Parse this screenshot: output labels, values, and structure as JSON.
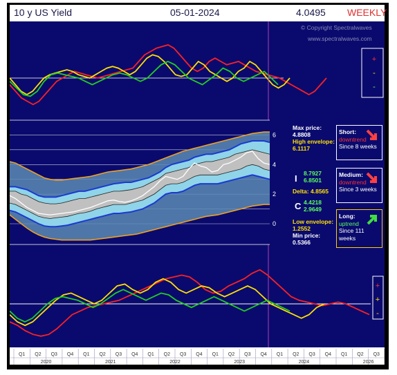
{
  "header": {
    "title": "10 y US Yield",
    "date": "05-01-2024",
    "value": "4.0495",
    "period": "WEEKLY"
  },
  "copyright": {
    "line1": "© Copyright Spectralwaves",
    "line2": "www.spectralwaves.com"
  },
  "side_symbols": {
    "top": [
      "+",
      "-",
      "-"
    ],
    "bottom": [
      "+",
      "+",
      "-"
    ]
  },
  "info": {
    "max_label": "Max price:",
    "max_value": "4.8808",
    "high_env_label": "High envelope:",
    "high_env_value": "6.1117",
    "i_label": "I",
    "i_value1": "8.7927",
    "i_value2": "6.8501",
    "delta_label": "Delta:",
    "delta_value": "4.8565",
    "c_label": "C",
    "c_value1": "4.4218",
    "c_value2": "2.9649",
    "low_env_label": "Low envelope:",
    "low_env_value": "1.2552",
    "min_label": "Min price:",
    "min_value": "0.5366"
  },
  "signals": [
    {
      "term": "Short:",
      "trend": "downtrend",
      "since": "Since 8 weeks",
      "color": "#ff3030"
    },
    {
      "term": "Medium:",
      "trend": "downtrend",
      "since": "Since 3 weeks",
      "color": "#ff3030"
    },
    {
      "term": "Long:",
      "trend": "uptrend",
      "since": "Since 111 weeks",
      "color": "#33dd33"
    }
  ],
  "chart_data": {
    "type": "line",
    "title": "10 y US Yield",
    "y_ticks": [
      "6",
      "4",
      "2",
      "0"
    ],
    "ylim": [
      -1.4,
      7
    ],
    "x_quarters": [
      "Q1",
      "Q2",
      "Q3",
      "Q4",
      "Q1",
      "Q2",
      "Q3",
      "Q4",
      "Q1",
      "Q2",
      "Q3",
      "Q4",
      "Q1",
      "Q2",
      "Q3",
      "Q4",
      "Q1",
      "Q2",
      "Q3",
      "Q4",
      "Q1",
      "Q2",
      "Q3",
      "Q4"
    ],
    "x_years": [
      "2020",
      "2021",
      "2022",
      "2023",
      "2024",
      "2026"
    ],
    "price": [
      1.9,
      1.7,
      1.4,
      1.1,
      0.9,
      0.7,
      0.65,
      0.6,
      0.65,
      0.7,
      0.75,
      0.8,
      0.9,
      1.0,
      1.1,
      1.25,
      1.4,
      1.55,
      1.6,
      1.5,
      1.45,
      1.55,
      1.7,
      1.9,
      2.2,
      2.5,
      2.9,
      3.2,
      3.1,
      3.0,
      3.2,
      3.7,
      4.1,
      3.9,
      3.8,
      3.5,
      3.6,
      4.0,
      4.1,
      4.3,
      4.5,
      4.8,
      4.9,
      4.4,
      4.1,
      4.0
    ],
    "band_outer_upper": [
      2.5,
      2.5,
      2.4,
      2.3,
      2.1,
      1.9,
      1.8,
      1.8,
      1.8,
      1.9,
      2.0,
      2.1,
      2.2,
      2.2,
      2.3,
      2.4,
      2.5,
      2.6,
      2.7,
      2.75,
      2.8,
      2.8,
      2.9,
      3.0,
      3.1,
      3.3,
      3.5,
      3.8,
      4.0,
      4.1,
      4.2,
      4.3,
      4.5,
      4.6,
      4.7,
      4.7,
      4.8,
      4.9,
      5.0,
      5.2,
      5.4,
      5.5,
      5.6,
      5.6,
      5.6,
      5.5
    ],
    "band_inner_upper": [
      2.2,
      2.2,
      2.0,
      1.9,
      1.7,
      1.5,
      1.4,
      1.35,
      1.35,
      1.4,
      1.5,
      1.6,
      1.7,
      1.7,
      1.8,
      1.9,
      2.0,
      2.1,
      2.2,
      2.2,
      2.25,
      2.3,
      2.4,
      2.5,
      2.7,
      2.9,
      3.1,
      3.4,
      3.5,
      3.6,
      3.7,
      3.8,
      4.0,
      4.1,
      4.2,
      4.2,
      4.3,
      4.4,
      4.5,
      4.7,
      4.8,
      4.9,
      5.0,
      4.9,
      4.8,
      4.7
    ],
    "band_inner_lower": [
      1.4,
      1.3,
      1.1,
      0.9,
      0.7,
      0.5,
      0.4,
      0.35,
      0.4,
      0.45,
      0.5,
      0.6,
      0.7,
      0.75,
      0.85,
      1.0,
      1.1,
      1.2,
      1.3,
      1.3,
      1.3,
      1.4,
      1.5,
      1.6,
      1.8,
      2.0,
      2.3,
      2.6,
      2.7,
      2.7,
      2.8,
      3.0,
      3.2,
      3.3,
      3.3,
      3.3,
      3.3,
      3.4,
      3.5,
      3.6,
      3.7,
      3.9,
      4.0,
      3.9,
      3.7,
      3.6
    ],
    "band_outer_lower": [
      0.9,
      0.8,
      0.6,
      0.4,
      0.2,
      0.0,
      -0.15,
      -0.2,
      -0.2,
      -0.15,
      -0.1,
      0.0,
      0.1,
      0.2,
      0.3,
      0.4,
      0.5,
      0.6,
      0.7,
      0.7,
      0.75,
      0.8,
      0.9,
      1.0,
      1.2,
      1.4,
      1.7,
      2.0,
      2.1,
      2.1,
      2.2,
      2.4,
      2.6,
      2.7,
      2.7,
      2.7,
      2.7,
      2.8,
      2.9,
      3.0,
      3.1,
      3.2,
      3.3,
      3.2,
      3.1,
      3.0
    ],
    "envelope_upper": [
      4.2,
      4.1,
      3.9,
      3.7,
      3.5,
      3.3,
      3.1,
      3.0,
      2.95,
      2.95,
      3.0,
      3.05,
      3.1,
      3.15,
      3.2,
      3.3,
      3.4,
      3.5,
      3.55,
      3.6,
      3.65,
      3.7,
      3.8,
      3.9,
      4.0,
      4.15,
      4.3,
      4.45,
      4.6,
      4.75,
      4.9,
      5.0,
      5.1,
      5.2,
      5.3,
      5.4,
      5.5,
      5.6,
      5.7,
      5.8,
      5.9,
      6.0,
      6.1,
      6.15,
      6.2,
      6.2
    ],
    "envelope_lower": [
      0.6,
      0.3,
      0.0,
      -0.3,
      -0.55,
      -0.75,
      -0.9,
      -1.0,
      -1.05,
      -1.1,
      -1.1,
      -1.1,
      -1.1,
      -1.1,
      -1.1,
      -1.05,
      -1.0,
      -0.95,
      -0.9,
      -0.85,
      -0.8,
      -0.75,
      -0.7,
      -0.6,
      -0.5,
      -0.4,
      -0.3,
      -0.2,
      -0.1,
      0.0,
      0.1,
      0.2,
      0.3,
      0.4,
      0.5,
      0.55,
      0.6,
      0.7,
      0.8,
      0.9,
      1.0,
      1.1,
      1.2,
      1.25,
      1.3,
      1.3
    ],
    "osc_top": {
      "range": [
        -1,
        1
      ],
      "red": [
        -0.2,
        -0.4,
        -0.6,
        -0.7,
        -0.8,
        -0.7,
        -0.5,
        -0.3,
        -0.1,
        0.0,
        0.1,
        0.2,
        0.15,
        0.1,
        0.05,
        0.0,
        0.05,
        0.1,
        0.15,
        0.2,
        0.25,
        0.3,
        0.5,
        0.7,
        0.8,
        0.9,
        0.95,
        1.0,
        0.9,
        0.7,
        0.5,
        0.3,
        0.2,
        0.3,
        0.5,
        0.6,
        0.5,
        0.4,
        0.45,
        0.5,
        0.4,
        0.3,
        0.2,
        0.15,
        0.1,
        0.05,
        0.0,
        -0.1,
        -0.2,
        -0.3,
        -0.4,
        -0.5,
        -0.4,
        -0.2,
        0.0
      ],
      "yellow": [
        0.0,
        -0.2,
        -0.4,
        -0.5,
        -0.4,
        -0.2,
        0.0,
        0.1,
        0.15,
        0.2,
        0.25,
        0.2,
        0.1,
        0.05,
        0.0,
        0.1,
        0.2,
        0.3,
        0.35,
        0.3,
        0.2,
        0.1,
        0.2,
        0.4,
        0.6,
        0.7,
        0.65,
        0.5,
        0.3,
        0.1,
        0.05,
        0.1,
        0.3,
        0.5,
        0.4,
        0.2,
        0.1,
        0.0,
        -0.1,
        0.0,
        0.2,
        0.3,
        0.5,
        0.4,
        0.2,
        0.0,
        -0.2,
        -0.3,
        -0.2,
        0.0
      ],
      "green": [
        -0.1,
        -0.3,
        -0.5,
        -0.55,
        -0.4,
        -0.1,
        0.1,
        0.15,
        0.1,
        0.05,
        0.0,
        -0.1,
        -0.2,
        -0.1,
        0.0,
        0.1,
        0.15,
        0.1,
        0.0,
        -0.1,
        0.0,
        0.2,
        0.4,
        0.5,
        0.4,
        0.2,
        0.0,
        -0.1,
        -0.2,
        -0.05,
        0.1,
        0.3,
        0.2,
        0.0,
        -0.1,
        0.0,
        0.1,
        0.2,
        0.0,
        -0.2
      ]
    },
    "osc_bottom": {
      "range": [
        -1,
        1
      ],
      "red": [
        -0.5,
        -0.6,
        -0.75,
        -0.85,
        -0.9,
        -0.85,
        -0.7,
        -0.5,
        -0.3,
        -0.2,
        -0.1,
        -0.05,
        0.0,
        0.05,
        0.1,
        0.2,
        0.3,
        0.4,
        0.5,
        0.6,
        0.7,
        0.75,
        0.8,
        0.75,
        0.6,
        0.4,
        0.3,
        0.35,
        0.5,
        0.6,
        0.7,
        0.85,
        0.95,
        0.8,
        0.6,
        0.4,
        0.2,
        0.1,
        0.05,
        0.0,
        -0.05,
        0.0,
        0.05,
        0.0,
        -0.1,
        -0.2,
        -0.3
      ],
      "yellow": [
        -0.3,
        -0.5,
        -0.6,
        -0.5,
        -0.3,
        -0.1,
        0.1,
        0.25,
        0.3,
        0.2,
        0.1,
        0.0,
        0.1,
        0.3,
        0.5,
        0.55,
        0.4,
        0.3,
        0.4,
        0.6,
        0.7,
        0.6,
        0.4,
        0.3,
        0.4,
        0.5,
        0.45,
        0.3,
        0.2,
        0.3,
        0.4,
        0.5,
        0.4,
        0.2,
        0.0,
        -0.1,
        -0.2,
        -0.3,
        -0.4,
        -0.3,
        -0.1,
        0.0
      ],
      "green": [
        -0.2,
        -0.4,
        -0.5,
        -0.4,
        -0.2,
        0.0,
        0.15,
        0.2,
        0.15,
        0.1,
        0.0,
        -0.1,
        0.0,
        0.15,
        0.3,
        0.4,
        0.3,
        0.2,
        0.1,
        0.2,
        0.3,
        0.25,
        0.1,
        0.0,
        -0.1,
        0.0,
        0.1,
        0.2,
        0.1,
        0.0,
        -0.1,
        -0.2,
        -0.1,
        0.0,
        0.1,
        0.0,
        -0.1,
        -0.2
      ]
    }
  }
}
